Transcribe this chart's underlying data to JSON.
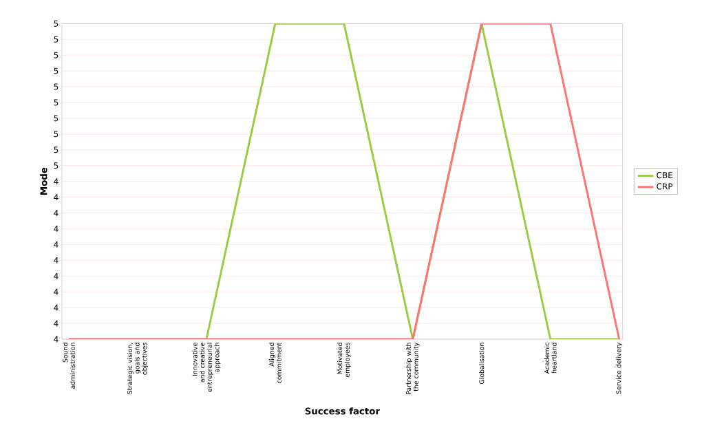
{
  "chart_data": {
    "type": "line",
    "xlabel": "Success factor",
    "ylabel": "Mode",
    "categories": [
      "Sound administration",
      "Strategic vision, goals and objectives",
      "Innovative and creative entrepreneurial approach",
      "Aligned commitment",
      "Motivated employees",
      "Partnership with the community",
      "Globalisation",
      "Academic heartland",
      "Service delivery"
    ],
    "series": [
      {
        "name": "CBE",
        "color": "#99cc44",
        "values": [
          4,
          4,
          4,
          5,
          5,
          4,
          5,
          4,
          4
        ]
      },
      {
        "name": "CRP",
        "color": "#ff7373",
        "values": [
          4,
          4,
          4,
          4,
          4,
          4,
          5,
          5,
          4
        ]
      }
    ],
    "ylim": [
      4,
      5
    ],
    "yticks": [
      {
        "value": 4,
        "label": "4"
      },
      {
        "value": 4.05,
        "label": "4"
      },
      {
        "value": 4.1,
        "label": "4"
      },
      {
        "value": 4.15,
        "label": "4"
      },
      {
        "value": 4.2,
        "label": "4"
      },
      {
        "value": 4.25,
        "label": "4"
      },
      {
        "value": 4.3,
        "label": "4"
      },
      {
        "value": 4.35,
        "label": "4"
      },
      {
        "value": 4.4,
        "label": "4"
      },
      {
        "value": 4.45,
        "label": "4"
      },
      {
        "value": 4.5,
        "label": "4"
      },
      {
        "value": 4.55,
        "label": "5"
      },
      {
        "value": 4.6,
        "label": "5"
      },
      {
        "value": 4.65,
        "label": "5"
      },
      {
        "value": 4.7,
        "label": "5"
      },
      {
        "value": 4.75,
        "label": "5"
      },
      {
        "value": 4.8,
        "label": "5"
      },
      {
        "value": 4.85,
        "label": "5"
      },
      {
        "value": 4.9,
        "label": "5"
      },
      {
        "value": 4.95,
        "label": "5"
      },
      {
        "value": 5,
        "label": "5"
      }
    ],
    "grid": "y",
    "legend": "right",
    "marker": "none",
    "line_style": "solid"
  }
}
